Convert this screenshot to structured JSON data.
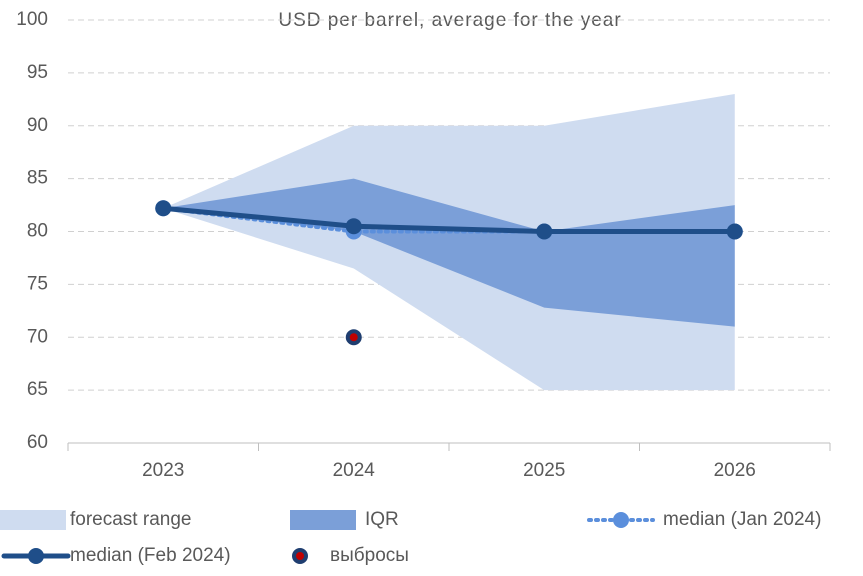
{
  "chart_data": {
    "type": "line",
    "title": "USD per barrel, average for the year",
    "categories": [
      "2023",
      "2024",
      "2025",
      "2026"
    ],
    "ylim": [
      60,
      100
    ],
    "yticks": [
      60,
      65,
      70,
      75,
      80,
      85,
      90,
      95,
      100
    ],
    "grid": true,
    "series": [
      {
        "name": "forecast range",
        "color": "#cfdcf0",
        "lower": [
          82.2,
          76.5,
          65,
          65
        ],
        "upper": [
          82.2,
          90,
          90,
          93
        ]
      },
      {
        "name": "IQR",
        "color": "#7b9fd8",
        "lower": [
          82.2,
          80,
          72.8,
          71
        ],
        "upper": [
          82.2,
          85,
          80,
          82.5
        ]
      },
      {
        "name": "median (Jan 2024)",
        "color": "#5b8fdc",
        "values": [
          82.2,
          80,
          80,
          80
        ],
        "dash": "dotted"
      },
      {
        "name": "median (Feb 2024)",
        "color": "#1f4e89",
        "values": [
          82.2,
          80.5,
          80,
          80
        ]
      },
      {
        "name": "выбросы",
        "color": "#c00000",
        "edge": "#1f3e70",
        "values": [
          null,
          70,
          null,
          null
        ],
        "markers_only": true
      }
    ]
  }
}
